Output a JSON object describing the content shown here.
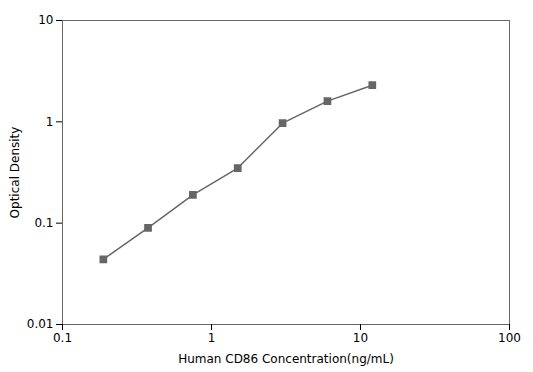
{
  "chart_data": {
    "type": "line",
    "x": [
      0.188,
      0.375,
      0.75,
      1.5,
      3.0,
      6.0,
      12.0
    ],
    "values": [
      0.044,
      0.09,
      0.19,
      0.35,
      0.97,
      1.6,
      2.3
    ],
    "xlabel": "Human CD86 Concentration(ng/mL)",
    "ylabel": "Optical Density",
    "xlim": [
      0.1,
      100
    ],
    "ylim": [
      0.01,
      10
    ],
    "xticks": [
      0.1,
      1,
      10,
      100
    ],
    "yticks": [
      0.01,
      0.1,
      1,
      10
    ],
    "log": true,
    "grid": false,
    "color": "#666666",
    "marker": "square"
  }
}
